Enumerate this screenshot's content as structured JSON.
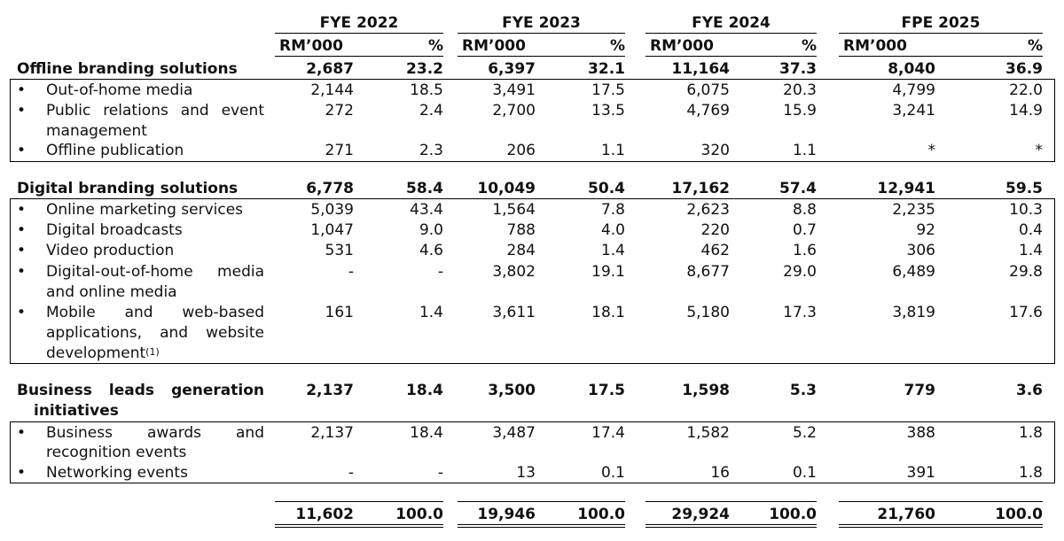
{
  "headers": {
    "periods": [
      "FYE 2022",
      "FYE 2023",
      "FYE 2024",
      "FPE 2025"
    ],
    "unit": "RM’000",
    "pct": "%"
  },
  "offline": {
    "label": "Offline branding solutions",
    "total": [
      "2,687",
      "23.2",
      "6,397",
      "32.1",
      "11,164",
      "37.3",
      "8,040",
      "36.9"
    ],
    "items": [
      {
        "label": [
          "Out-of-home media"
        ],
        "values": [
          "2,144",
          "18.5",
          "3,491",
          "17.5",
          "6,075",
          "20.3",
          "4,799",
          "22.0"
        ]
      },
      {
        "label": [
          "Public",
          "relations",
          "and",
          "event"
        ],
        "label2": "management",
        "values": [
          "272",
          "2.4",
          "2,700",
          "13.5",
          "4,769",
          "15.9",
          "3,241",
          "14.9"
        ]
      },
      {
        "label": [
          "Offline publication"
        ],
        "values": [
          "271",
          "2.3",
          "206",
          "1.1",
          "320",
          "1.1",
          "*",
          "*"
        ]
      }
    ]
  },
  "digital": {
    "label": "Digital branding solutions",
    "total": [
      "6,778",
      "58.4",
      "10,049",
      "50.4",
      "17,162",
      "57.4",
      "12,941",
      "59.5"
    ],
    "items": [
      {
        "label": [
          "Online marketing services"
        ],
        "values": [
          "5,039",
          "43.4",
          "1,564",
          "7.8",
          "2,623",
          "8.8",
          "2,235",
          "10.3"
        ]
      },
      {
        "label": [
          "Digital broadcasts"
        ],
        "values": [
          "1,047",
          "9.0",
          "788",
          "4.0",
          "220",
          "0.7",
          "92",
          "0.4"
        ]
      },
      {
        "label": [
          "Video production"
        ],
        "values": [
          "531",
          "4.6",
          "284",
          "1.4",
          "462",
          "1.6",
          "306",
          "1.4"
        ]
      },
      {
        "label": [
          "Digital-out-of-home",
          "media"
        ],
        "label2": "and online media",
        "values": [
          "-",
          "-",
          "3,802",
          "19.1",
          "8,677",
          "29.0",
          "6,489",
          "29.8"
        ]
      },
      {
        "label": [
          "Mobile",
          "and",
          "web-based"
        ],
        "label2_words": [
          "applications,",
          "and",
          "website"
        ],
        "label3": "development",
        "footnote": "(1)",
        "values": [
          "161",
          "1.4",
          "3,611",
          "18.1",
          "5,180",
          "17.3",
          "3,819",
          "17.6"
        ]
      }
    ]
  },
  "business": {
    "label_words": [
      "Business",
      "leads",
      "generation"
    ],
    "label2": "initiatives",
    "total": [
      "2,137",
      "18.4",
      "3,500",
      "17.5",
      "1,598",
      "5.3",
      "779",
      "3.6"
    ],
    "items": [
      {
        "label": [
          "Business",
          "awards",
          "and"
        ],
        "label2": "recognition events",
        "values": [
          "2,137",
          "18.4",
          "3,487",
          "17.4",
          "1,582",
          "5.2",
          "388",
          "1.8"
        ]
      },
      {
        "label": [
          "Networking events"
        ],
        "values": [
          "-",
          "-",
          "13",
          "0.1",
          "16",
          "0.1",
          "391",
          "1.8"
        ]
      }
    ]
  },
  "grand_total": [
    "11,602",
    "100.0",
    "19,946",
    "100.0",
    "29,924",
    "100.0",
    "21,760",
    "100.0"
  ],
  "bullet": "•"
}
